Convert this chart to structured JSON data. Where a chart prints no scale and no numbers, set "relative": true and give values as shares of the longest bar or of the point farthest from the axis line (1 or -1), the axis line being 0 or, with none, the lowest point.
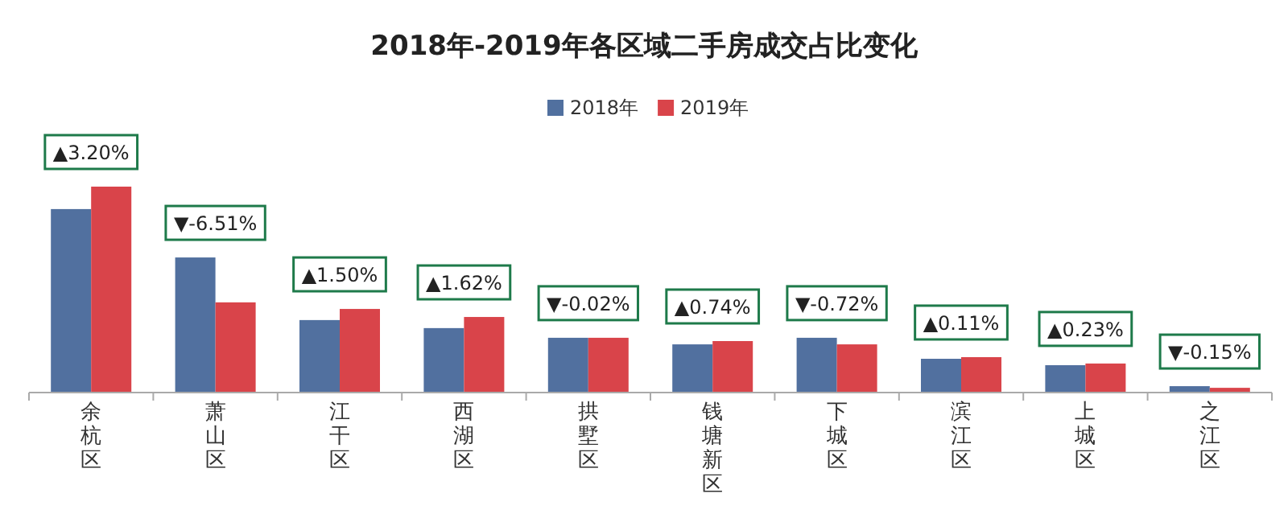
{
  "chart_data": {
    "type": "bar",
    "title": "2018年-2019年各区域二手房成交占比变化",
    "relative": true,
    "legend": "top",
    "categories": [
      "余杭区",
      "萧山区",
      "江干区",
      "西湖区",
      "拱墅区",
      "钱塘新区",
      "下城区",
      "滨江区",
      "上城区",
      "之江区"
    ],
    "series": [
      {
        "name": "2018年",
        "color": "#51709f",
        "values": [
          0.891,
          0.656,
          0.352,
          0.313,
          0.266,
          0.234,
          0.266,
          0.164,
          0.133,
          0.031
        ]
      },
      {
        "name": "2019年",
        "color": "#d9444a",
        "values": [
          1.0,
          0.438,
          0.406,
          0.367,
          0.266,
          0.25,
          0.234,
          0.172,
          0.141,
          0.023
        ]
      }
    ],
    "annotations": [
      {
        "text": "▲3.20%",
        "x": "余杭区",
        "y": 1.0
      },
      {
        "text": "▼-6.51%",
        "x": "萧山区",
        "y": 0.656
      },
      {
        "text": "▲1.50%",
        "x": "江干区",
        "y": 0.406
      },
      {
        "text": "▲1.62%",
        "x": "西湖区",
        "y": 0.367
      },
      {
        "text": "▼-0.02%",
        "x": "拱墅区",
        "y": 0.266
      },
      {
        "text": "▲0.74%",
        "x": "钱塘新区",
        "y": 0.25
      },
      {
        "text": "▼-0.72%",
        "x": "下城区",
        "y": 0.266
      },
      {
        "text": "▲0.11%",
        "x": "滨江区",
        "y": 0.172
      },
      {
        "text": "▲0.23%",
        "x": "上城区",
        "y": 0.141
      },
      {
        "text": "▼-0.15%",
        "x": "之江区",
        "y": 0.031
      }
    ]
  }
}
